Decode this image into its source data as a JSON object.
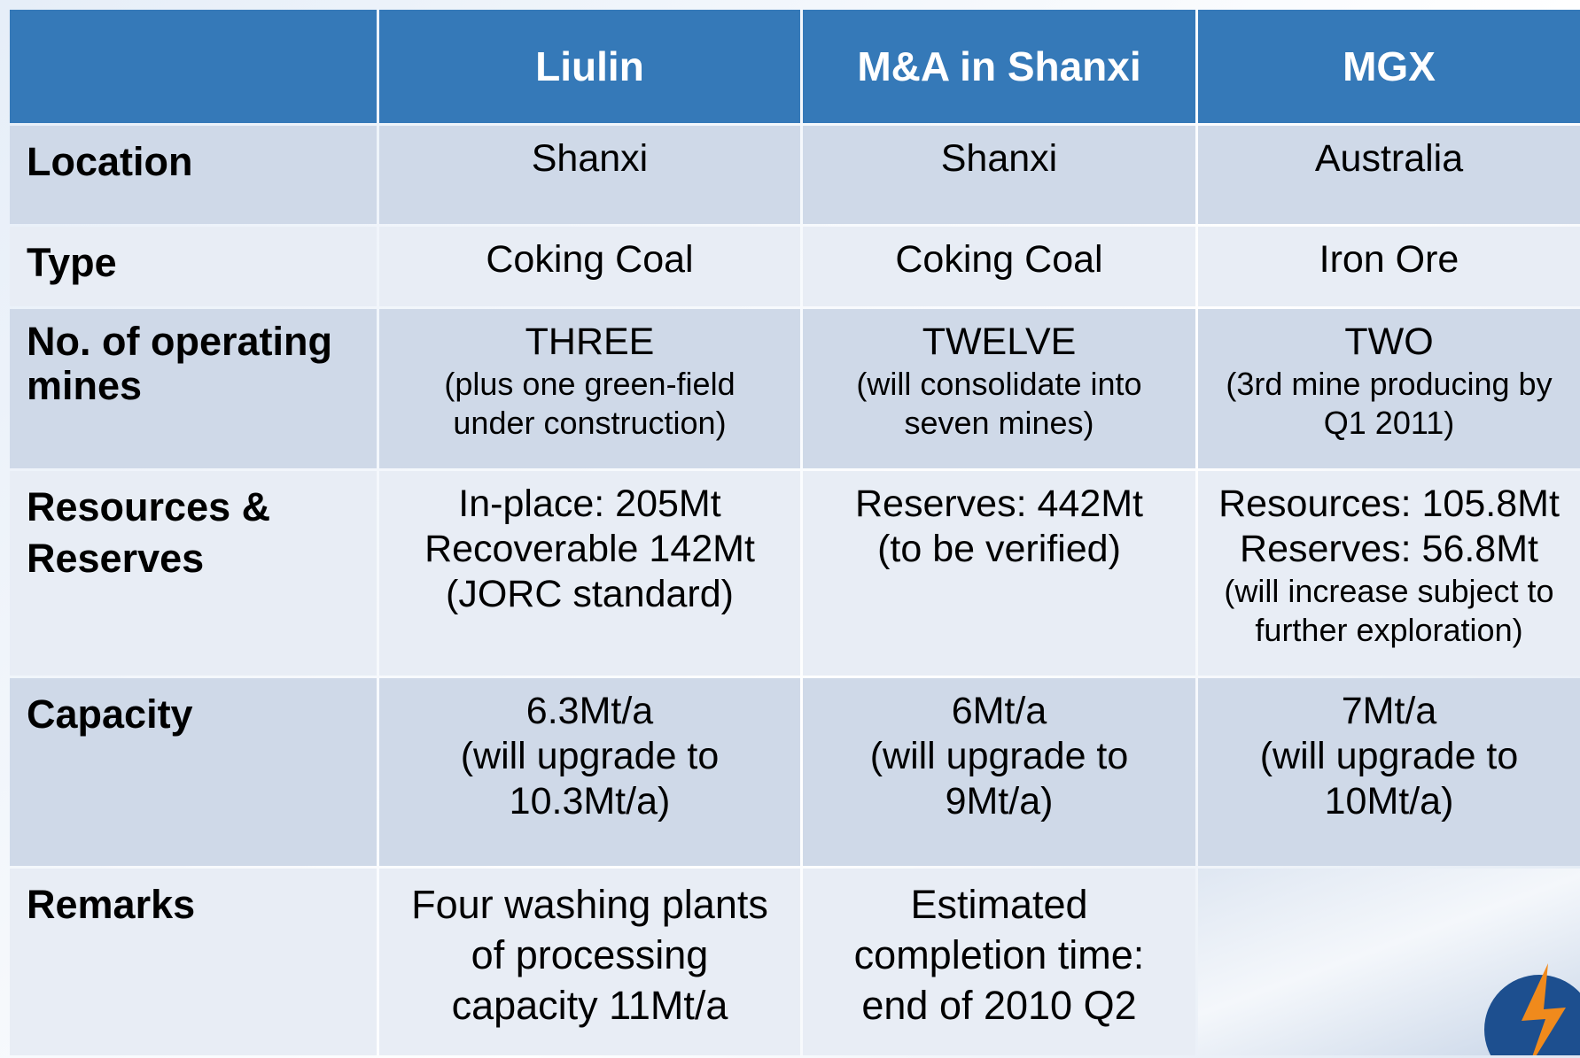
{
  "table": {
    "header": [
      "Liulin",
      "M&A in Shanxi",
      "MGX"
    ],
    "rows": [
      {
        "label": "Location",
        "cells": [
          {
            "lines": [
              "Shanxi"
            ]
          },
          {
            "lines": [
              "Shanxi"
            ]
          },
          {
            "lines": [
              "Australia"
            ]
          }
        ]
      },
      {
        "label": "Type",
        "cells": [
          {
            "lines": [
              "Coking Coal"
            ]
          },
          {
            "lines": [
              "Coking Coal"
            ]
          },
          {
            "lines": [
              "Iron Ore"
            ]
          }
        ]
      },
      {
        "label": "No. of operating mines",
        "cells": [
          {
            "lines": [
              "THREE"
            ],
            "notes": [
              "(plus one green-field",
              "under construction)"
            ]
          },
          {
            "lines": [
              "TWELVE"
            ],
            "notes": [
              "(will consolidate into",
              "seven mines)"
            ]
          },
          {
            "lines": [
              "TWO"
            ],
            "notes": [
              "(3rd mine producing by",
              "Q1 2011)"
            ]
          }
        ]
      },
      {
        "label": "Resources & Reserves",
        "cells": [
          {
            "lines": [
              "In-place: 205Mt",
              "Recoverable 142Mt",
              "(JORC standard)"
            ]
          },
          {
            "lines": [
              "Reserves: 442Mt",
              "(to be verified)"
            ]
          },
          {
            "lines": [
              "Resources: 105.8Mt",
              "Reserves: 56.8Mt"
            ],
            "notes": [
              "(will increase subject to",
              "further exploration)"
            ]
          }
        ]
      },
      {
        "label": "Capacity",
        "cells": [
          {
            "lines": [
              "6.3Mt/a",
              "(will upgrade to",
              "10.3Mt/a)"
            ]
          },
          {
            "lines": [
              "6Mt/a",
              "(will upgrade to",
              "9Mt/a)"
            ]
          },
          {
            "lines": [
              "7Mt/a",
              "(will upgrade to",
              "10Mt/a)"
            ]
          }
        ]
      },
      {
        "label": "Remarks",
        "cells": [
          {
            "lines": [
              "Four washing plants",
              "of processing",
              "capacity 11Mt/a"
            ]
          },
          {
            "lines": [
              "Estimated",
              "completion time:",
              "end of 2010 Q2"
            ]
          },
          {}
        ]
      }
    ]
  }
}
